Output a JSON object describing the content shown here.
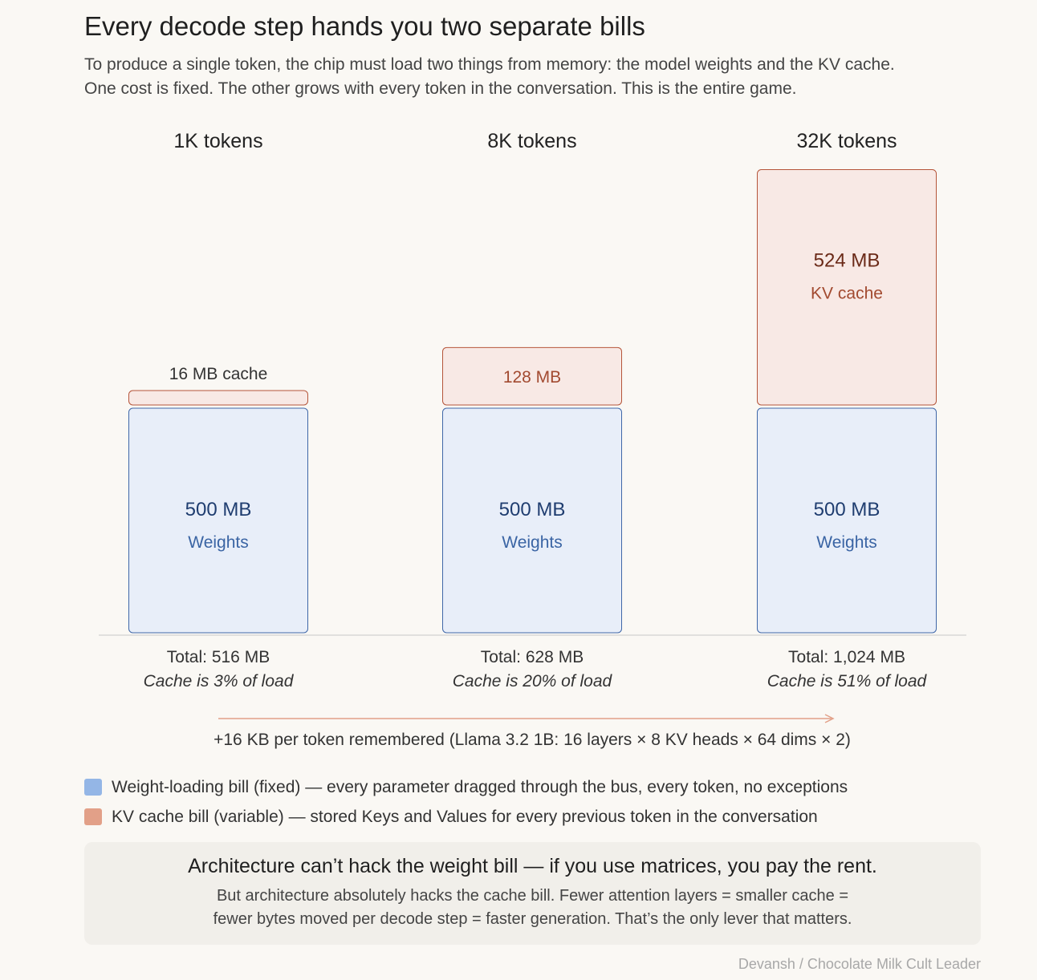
{
  "header": {
    "title": "Every decode step hands you two separate bills",
    "subtitle_lines": [
      "To produce a single token, the chip must load two things from memory: the model weights and the KV cache.",
      "One cost is fixed. The other grows with every token in the conversation. This is the entire game."
    ]
  },
  "chart_data": {
    "type": "bar",
    "stacked": true,
    "units": "MB",
    "categories": [
      "1K tokens",
      "8K tokens",
      "32K tokens"
    ],
    "series": [
      {
        "name": "Weights",
        "values": [
          500,
          500,
          500
        ]
      },
      {
        "name": "KV cache",
        "values": [
          16,
          128,
          524
        ]
      }
    ],
    "bar_value_labels": {
      "weights": [
        "500 MB",
        "500 MB",
        "500 MB"
      ],
      "weights_caption": [
        "Weights",
        "Weights",
        "Weights"
      ],
      "cache": [
        "16 MB cache",
        "128 MB",
        "524 MB"
      ],
      "cache_caption": [
        "",
        "",
        "KV cache"
      ]
    },
    "totals": [
      "Total: 516 MB",
      "Total: 628 MB",
      "Total: 1,024 MB"
    ],
    "cache_share": [
      "Cache is 3% of load",
      "Cache is 20% of load",
      "Cache is 51% of load"
    ],
    "growth_note": "+16 KB per token remembered (Llama 3.2 1B: 16 layers × 8 KV heads × 64 dims × 2)"
  },
  "legend": {
    "items": [
      {
        "label": "Weight-loading bill (fixed) — every parameter dragged through the bus, every token, no exceptions",
        "color": "#94b6e6"
      },
      {
        "label": "KV cache bill (variable) — stored Keys and Values for every previous token in the conversation",
        "color": "#e2a088"
      }
    ]
  },
  "callout": {
    "headline": "Architecture can’t hack the weight bill — if you use matrices, you pay the rent.",
    "body_lines": [
      "But architecture absolutely hacks the cache bill. Fewer attention layers = smaller cache =",
      "fewer bytes moved per decode step = faster generation. That’s the only lever that matters."
    ]
  },
  "credit": "Devansh / Chocolate Milk Cult Leader",
  "colors": {
    "weights_fill": "#e8eef9",
    "weights_stroke": "#3f67a8",
    "weights_value": "#1f3d70",
    "weights_label": "#3a64a4",
    "cache_fill": "#f8e9e5",
    "cache_stroke": "#b5553a",
    "cache_value": "#6b2a18",
    "cache_label": "#a24a30",
    "arrow": "#e2a088",
    "axis": "#c8c8c8"
  }
}
